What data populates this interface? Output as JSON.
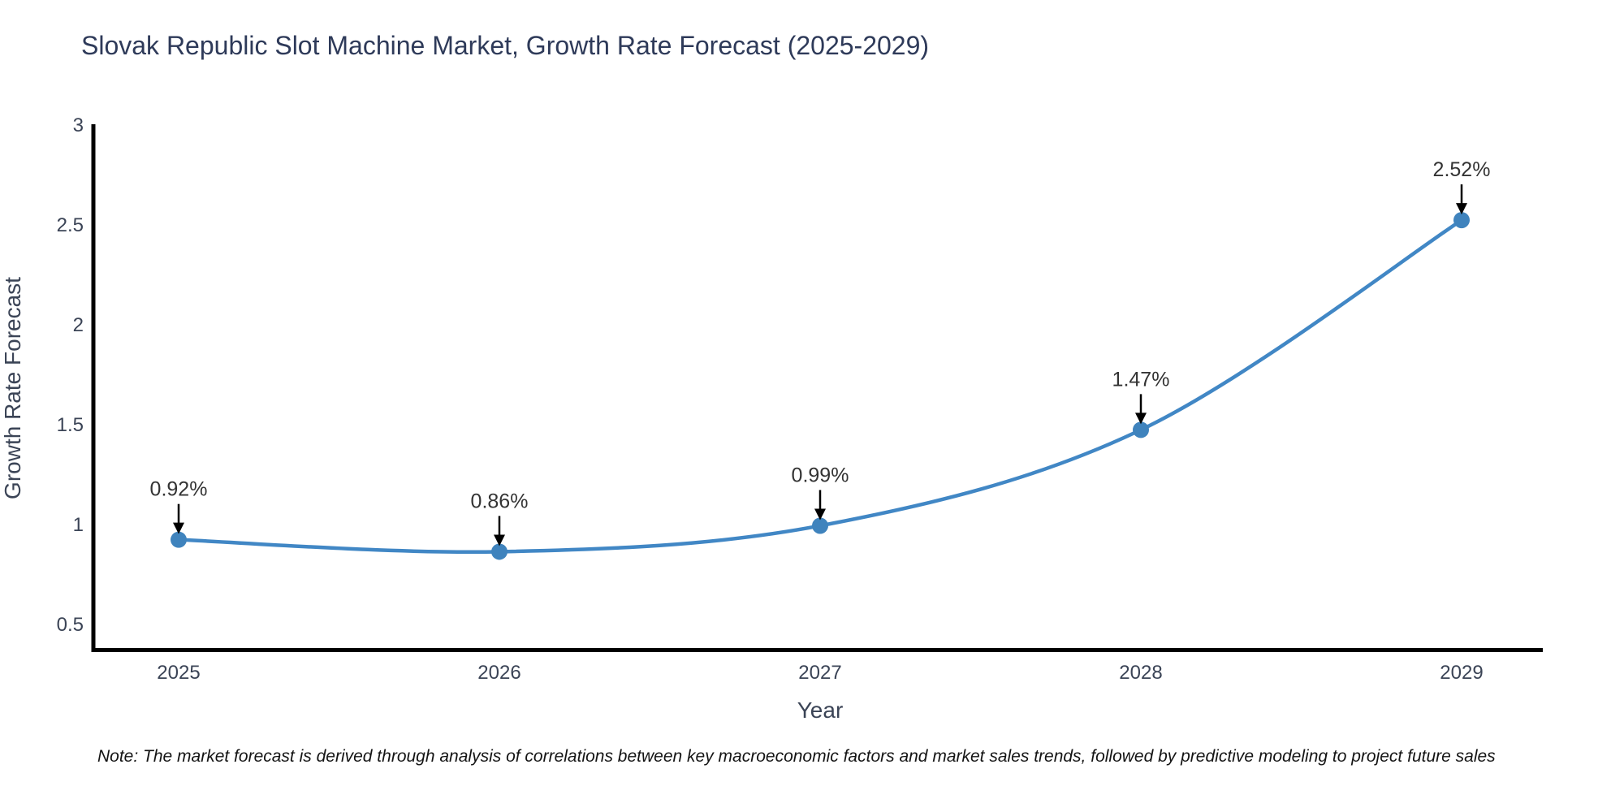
{
  "chart_data": {
    "type": "line",
    "title": "Slovak Republic Slot Machine Market, Growth Rate Forecast (2025-2029)",
    "categories": [
      "2025",
      "2026",
      "2027",
      "2028",
      "2029"
    ],
    "values": [
      0.92,
      0.86,
      0.99,
      1.47,
      2.52
    ],
    "point_labels": [
      "0.92%",
      "0.86%",
      "0.99%",
      "1.47%",
      "2.52%"
    ],
    "xlabel": "Year",
    "ylabel": "Growth Rate Forecast",
    "yticks": [
      "0.5",
      "1",
      "1.5",
      "2",
      "2.5",
      "3"
    ],
    "ytick_values": [
      0.5,
      1,
      1.5,
      2,
      2.5,
      3
    ],
    "ylim": [
      0.37,
      3.0
    ],
    "grid": false,
    "legend": false,
    "line_color": "#4187c5",
    "marker_color": "#3f83bd",
    "arrow_color": "#000000",
    "annotation_color": "#333333",
    "axis_color": "#000000",
    "tick_color": "#3b4456",
    "title_color": "#2e3a59",
    "background_color": "#ffffff"
  },
  "note": "Note: The market forecast is derived through analysis of correlations between key macroeconomic factors and market sales trends, followed by predictive modeling to project future sales"
}
